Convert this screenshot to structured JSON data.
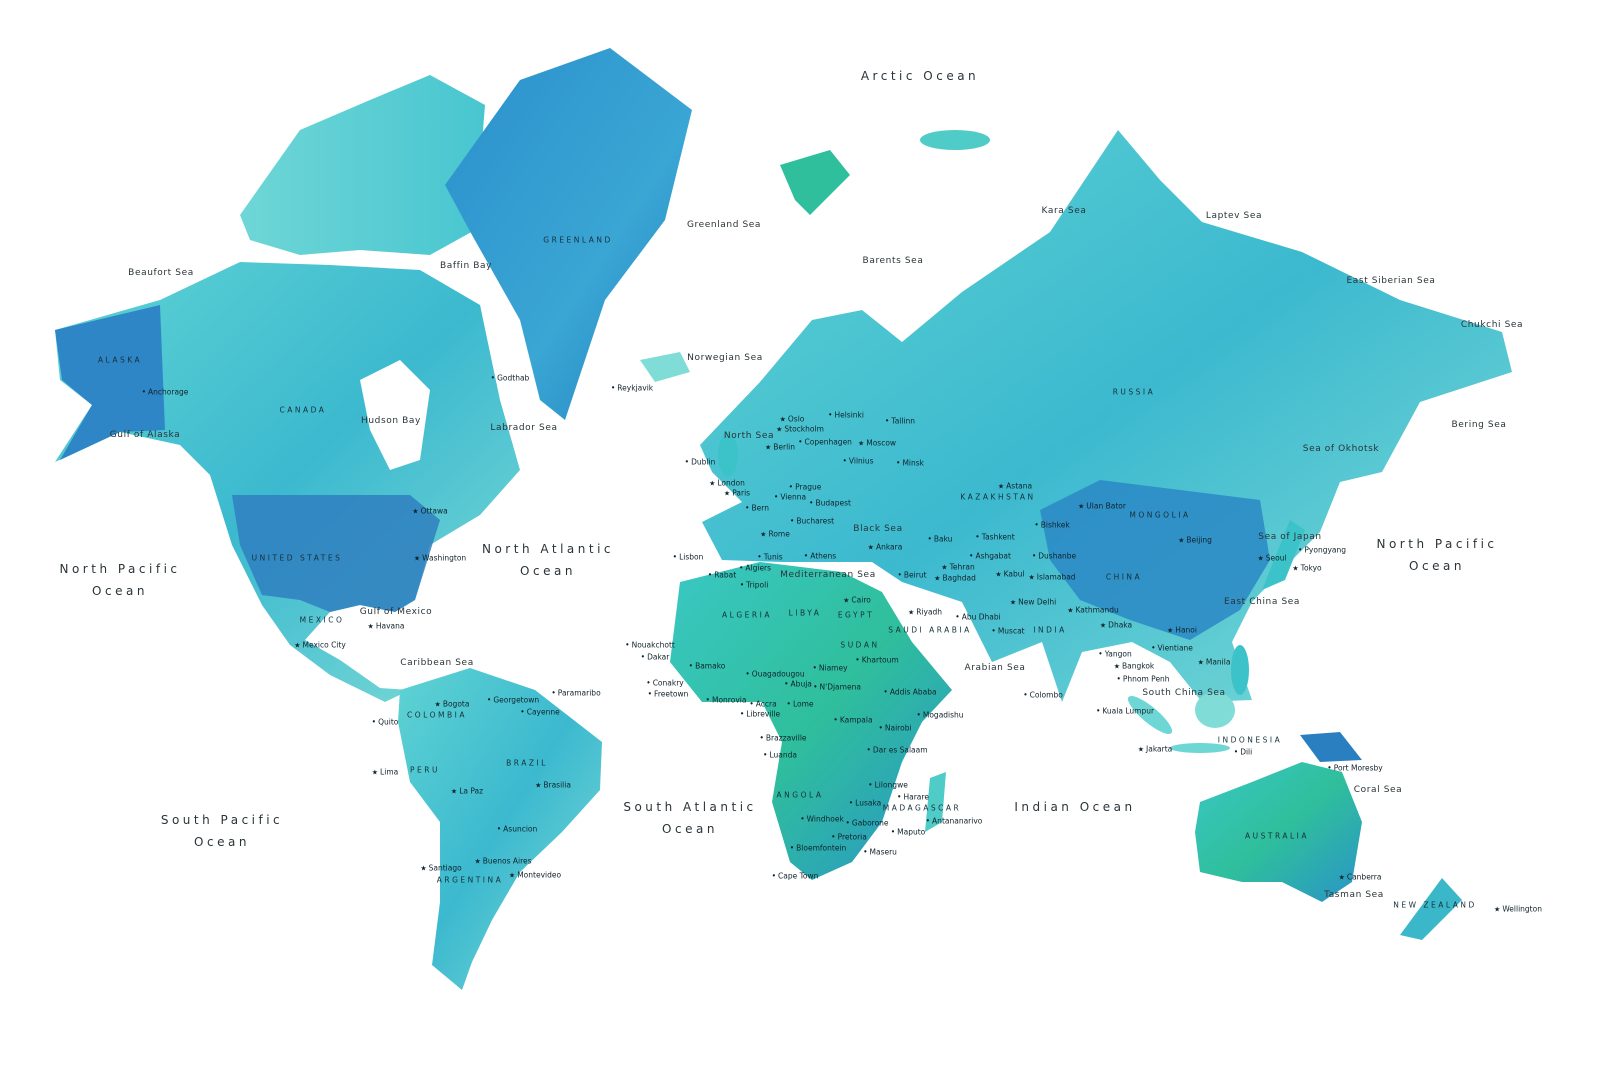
{
  "map": {
    "colors": {
      "land_light": "#7fdcd6",
      "land_mid": "#3cc3c9",
      "land_dark": "#1f7fc0",
      "land_green": "#2fbf9c",
      "water": "#ffffff",
      "text": "#1d2b33"
    },
    "oceans": [
      "Arctic Ocean",
      "North Pacific Ocean",
      "North Atlantic Ocean",
      "South Atlantic Ocean",
      "Indian Ocean",
      "South Pacific Ocean",
      "North Pacific Ocean"
    ],
    "seas": [
      "Beaufort Sea",
      "Greenland Sea",
      "Barents Sea",
      "Kara Sea",
      "Laptev Sea",
      "East Siberian Sea",
      "Chukchi Sea",
      "Bering Sea",
      "Sea of Okhotsk",
      "Norwegian Sea",
      "Labrador Sea",
      "Hudson Bay",
      "Baffin Bay",
      "Gulf of Alaska",
      "Gulf of Mexico",
      "Caribbean Sea",
      "Mediterranean Sea",
      "Black Sea",
      "Arabian Sea",
      "South China Sea",
      "Coral Sea",
      "Tasman Sea",
      "North Sea",
      "Sea of Japan",
      "East China Sea"
    ],
    "countries": [
      "GREENLAND",
      "CANADA",
      "UNITED STATES",
      "MEXICO",
      "BRAZIL",
      "RUSSIA",
      "CHINA",
      "AUSTRALIA",
      "INDONESIA",
      "KAZAKHSTAN",
      "ALGERIA",
      "LIBYA",
      "EGYPT",
      "SUDAN",
      "SAUDI ARABIA",
      "INDIA",
      "MONGOLIA",
      "ALASKA",
      "COLOMBIA",
      "ARGENTINA",
      "PERU",
      "NEW ZEALAND",
      "MADAGASCAR",
      "ANGOLA"
    ],
    "cities": [
      "Reykjavik",
      "Godthab",
      "Oslo",
      "Stockholm",
      "Helsinki",
      "Tallinn",
      "Copenhagen",
      "Moscow",
      "Vilnius",
      "Minsk",
      "London",
      "Dublin",
      "Paris",
      "Berlin",
      "Prague",
      "Vienna",
      "Budapest",
      "Bern",
      "Rome",
      "Bucharest",
      "Athens",
      "Ankara",
      "Lisbon",
      "Rabat",
      "Algiers",
      "Tunis",
      "Tripoli",
      "Cairo",
      "Beirut",
      "Baghdad",
      "Tehran",
      "Riyadh",
      "Abu Dhabi",
      "Muscat",
      "Baku",
      "Ashgabat",
      "Tashkent",
      "Bishkek",
      "Dushanbe",
      "Astana",
      "Kabul",
      "Islamabad",
      "New Delhi",
      "Kathmandu",
      "Dhaka",
      "Colombo",
      "Ulan Bator",
      "Beijing",
      "Seoul",
      "Tokyo",
      "Pyongyang",
      "Hanoi",
      "Yangon",
      "Bangkok",
      "Vientiane",
      "Phnom Penh",
      "Manila",
      "Kuala Lumpur",
      "Jakarta",
      "Dili",
      "Port Moresby",
      "Canberra",
      "Wellington",
      "Nouakchott",
      "Dakar",
      "Bamako",
      "Conakry",
      "Freetown",
      "Monrovia",
      "Ouagadougou",
      "Niamey",
      "Accra",
      "Lome",
      "Abuja",
      "N'Djamena",
      "Khartoum",
      "Addis Ababa",
      "Mogadishu",
      "Kampala",
      "Nairobi",
      "Libreville",
      "Brazzaville",
      "Luanda",
      "Dar es Salaam",
      "Lilongwe",
      "Lusaka",
      "Harare",
      "Antananarivo",
      "Windhoek",
      "Gaborone",
      "Pretoria",
      "Maputo",
      "Bloemfontein",
      "Maseru",
      "Cape Town",
      "Ottawa",
      "Washington",
      "Havana",
      "Mexico City",
      "Bogota",
      "Quito",
      "Lima",
      "La Paz",
      "Brasilia",
      "Asuncion",
      "Santiago",
      "Buenos Aires",
      "Montevideo",
      "Georgetown",
      "Paramaribo",
      "Cayenne",
      "Anchorage"
    ]
  }
}
